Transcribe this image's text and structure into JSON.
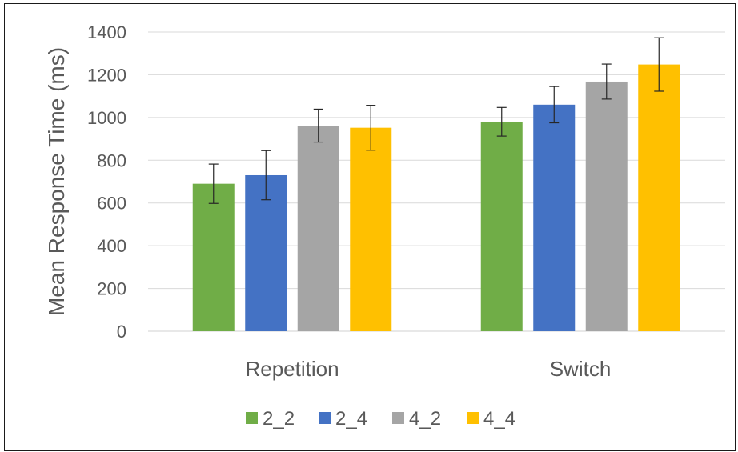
{
  "chart_data": {
    "type": "bar",
    "title": "",
    "xlabel": "",
    "ylabel": "Mean Response Time (ms)",
    "ylim": [
      0,
      1400
    ],
    "yticks": [
      0,
      200,
      400,
      600,
      800,
      1000,
      1200,
      1400
    ],
    "grid": true,
    "legend_position": "bottom",
    "categories": [
      "Repetition",
      "Switch"
    ],
    "series": [
      {
        "name": "2_2",
        "color": "#70ad47",
        "values": [
          690,
          980
        ],
        "error": [
          92,
          67
        ]
      },
      {
        "name": "2_4",
        "color": "#4472c4",
        "values": [
          730,
          1060
        ],
        "error": [
          115,
          85
        ]
      },
      {
        "name": "4_2",
        "color": "#a5a5a5",
        "values": [
          962,
          1168
        ],
        "error": [
          77,
          82
        ]
      },
      {
        "name": "4_4",
        "color": "#ffc000",
        "values": [
          952,
          1248
        ],
        "error": [
          105,
          125
        ]
      }
    ]
  }
}
